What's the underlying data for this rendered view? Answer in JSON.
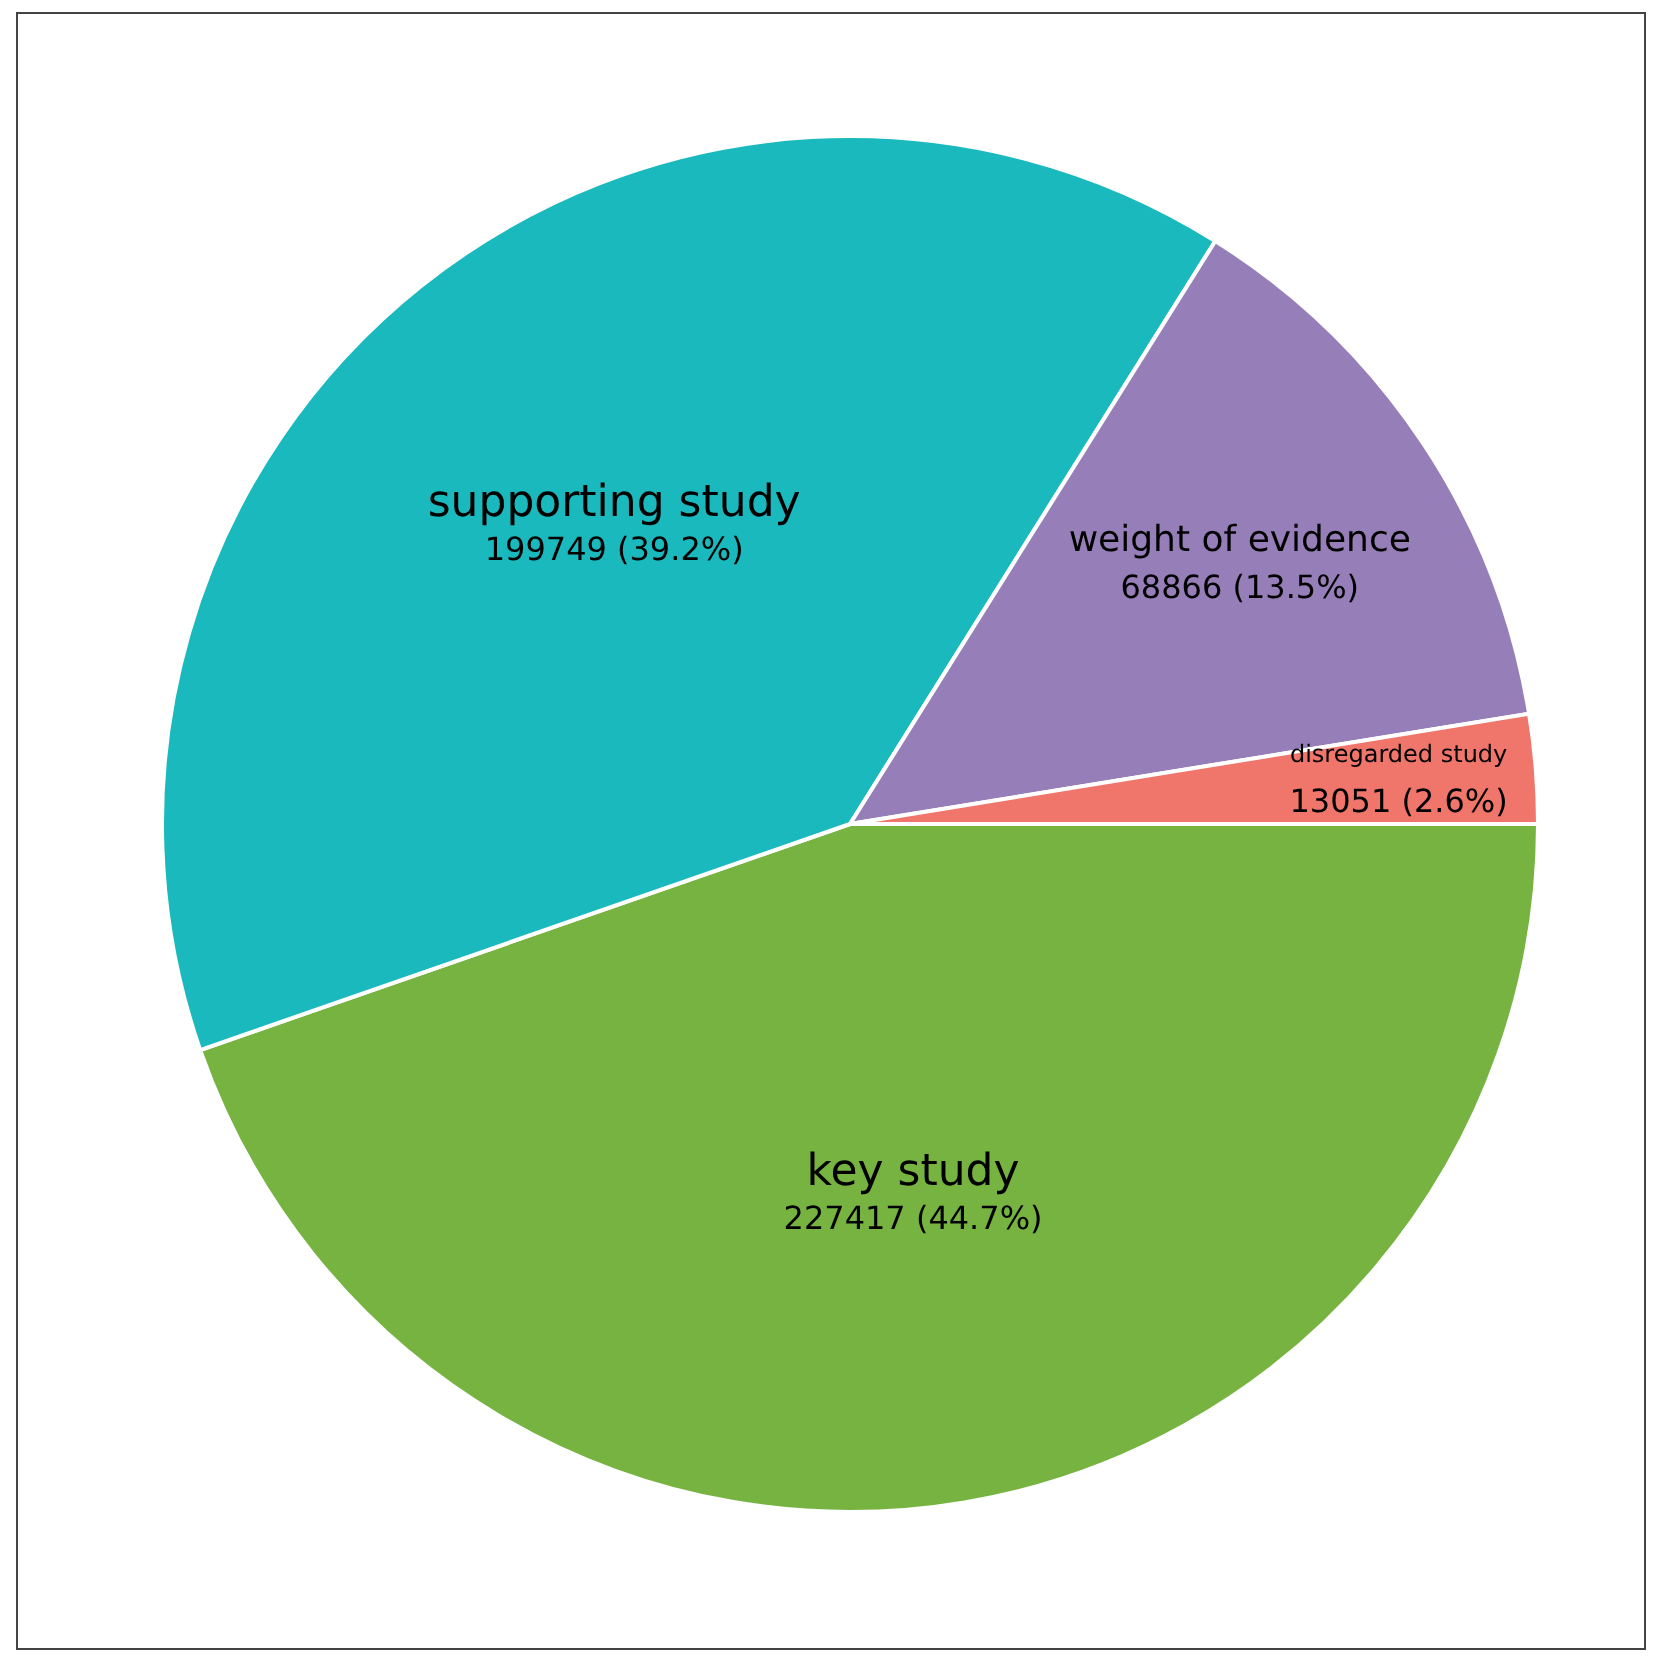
{
  "chart_data": {
    "type": "pie",
    "categories": [
      "key study",
      "supporting study",
      "weight of evidence",
      "disregarded study"
    ],
    "values": [
      227417,
      199749,
      68866,
      13051
    ],
    "value_labels": [
      "227417 (44.7%)",
      "199749 (39.2%)",
      "68866 (13.5%)",
      "13051 (2.6%)"
    ],
    "colors": [
      "#77b341",
      "#19b9be",
      "#967eb9",
      "#f0756a"
    ],
    "legend": false
  }
}
